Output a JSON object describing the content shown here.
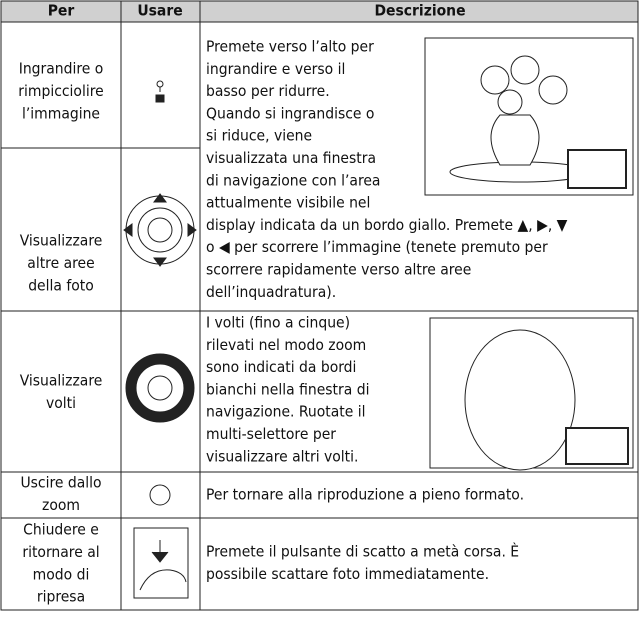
{
  "table": {
    "header": [
      "Per",
      "Usare",
      "Descrizione"
    ],
    "rows": [
      {
        "per": [
          "Ingrandire o",
          "rimpicciolire",
          "l’immagine"
        ]
      },
      {
        "per": [
          "Visualizzare",
          "altre aree",
          "della foto"
        ]
      },
      {
        "per": [
          "Visualizzare",
          "volti"
        ],
        "descrizione": [
          "I volti (fino a cinque)",
          "rilevati nel modo zoom",
          "sono indicati da bordi",
          "bianchi nella finestra di",
          "navigazione. Ruotate il",
          "multi-selettore per",
          "visualizzare altri volti."
        ]
      },
      {
        "per": [
          "Uscire dallo",
          "zoom"
        ],
        "descrizione": [
          "Per tornare alla riproduzione a pieno formato."
        ]
      },
      {
        "per": [
          "Chiudere e",
          "ritornare al",
          "modo di",
          "ripresa"
        ],
        "descrizione": [
          "Premete il pulsante di scatto a metà corsa. È",
          "possibile scattare foto immediatamente."
        ]
      }
    ],
    "zoom_descrizione": [
      "Premete verso l’alto per",
      "ingrandire e verso il",
      "basso per ridurre.",
      "Quando si ingrandisce o",
      "si riduce, viene",
      "visualizzata una finestra",
      "di navigazione con l’area",
      "attualmente visibile nel",
      "display indicata da un bordo giallo. Premete ▲, ▶, ▼",
      "o ◀ per scorrere l’immagine (tenete premuto per",
      "scorrere rapidamente verso altre aree",
      "dell’inquadratura)."
    ]
  }
}
